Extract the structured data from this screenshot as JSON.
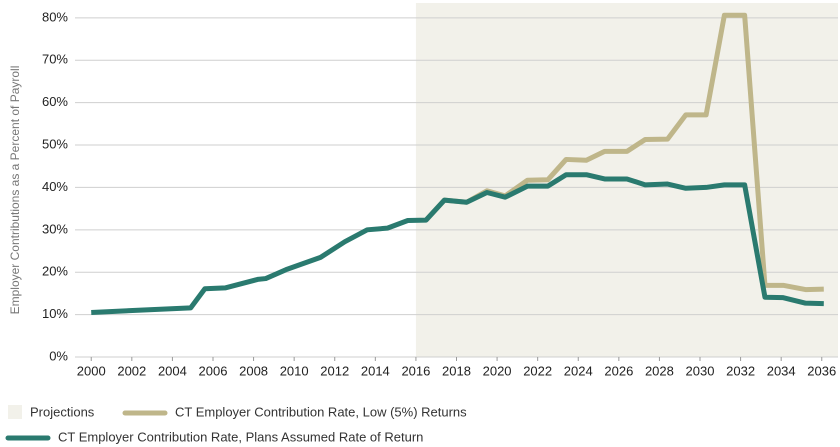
{
  "chart_data": {
    "type": "line",
    "y_label": "Employer Contributions as a Percent of Payroll",
    "xlim": [
      1999.2,
      2036.8
    ],
    "xticks": [
      2000,
      2002,
      2004,
      2006,
      2008,
      2010,
      2012,
      2014,
      2016,
      2018,
      2020,
      2022,
      2024,
      2026,
      2028,
      2030,
      2032,
      2034,
      2036
    ],
    "ylim": [
      0,
      83.5
    ],
    "yticks": [
      {
        "value": 0,
        "label": "0%"
      },
      {
        "value": 10,
        "label": "10%"
      },
      {
        "value": 20,
        "label": "20%"
      },
      {
        "value": 30,
        "label": "30%"
      },
      {
        "value": 40,
        "label": "40%"
      },
      {
        "value": 50,
        "label": "50%"
      },
      {
        "value": 60,
        "label": "60%"
      },
      {
        "value": 70,
        "label": "70%"
      },
      {
        "value": 80,
        "label": "80%"
      }
    ],
    "grid": true,
    "projection_start": 2016,
    "projection_label": "Projections",
    "projection_color": "#f2f1ea",
    "series": [
      {
        "name": "CT Employer Contribution Rate, Low (5%) Returns",
        "color": "#bfb68a",
        "x": [
          2016.5,
          2017.4,
          2018.5,
          2019.5,
          2020.4,
          2021.5,
          2022.5,
          2023.4,
          2024.4,
          2025.3,
          2026.4,
          2027.3,
          2028.4,
          2029.3,
          2030.3,
          2031.2,
          2032.2,
          2033.2,
          2034.1,
          2035.2,
          2036.1
        ],
        "values": [
          32.3,
          37,
          36.5,
          39.2,
          38,
          41.7,
          41.8,
          46.6,
          46.4,
          48.5,
          48.5,
          51.3,
          51.4,
          57.1,
          57.1,
          80.6,
          80.6,
          16.9,
          16.9,
          15.9,
          16
        ]
      },
      {
        "name": "CT Employer Contribution Rate, Plans Assumed Rate of Return",
        "color": "#2a7a6f",
        "x": [
          2000,
          2004.9,
          2005.6,
          2006.6,
          2008.2,
          2008.6,
          2009.6,
          2011.3,
          2012.5,
          2013.6,
          2014.6,
          2015.6,
          2016.5,
          2017.4,
          2018.5,
          2019.5,
          2020.4,
          2021.5,
          2022.5,
          2023.4,
          2024.4,
          2025.3,
          2026.4,
          2027.3,
          2028.4,
          2029.3,
          2030.3,
          2031.2,
          2032.2,
          2033.2,
          2034.1,
          2035.2,
          2036.1
        ],
        "values": [
          10.5,
          11.6,
          16.1,
          16.3,
          18.3,
          18.5,
          20.6,
          23.5,
          27.2,
          30,
          30.4,
          32.2,
          32.3,
          37,
          36.5,
          38.8,
          37.7,
          40.3,
          40.3,
          43,
          43,
          42,
          42,
          40.6,
          40.8,
          39.8,
          40,
          40.6,
          40.6,
          14.1,
          14,
          12.7,
          12.6
        ]
      }
    ]
  }
}
